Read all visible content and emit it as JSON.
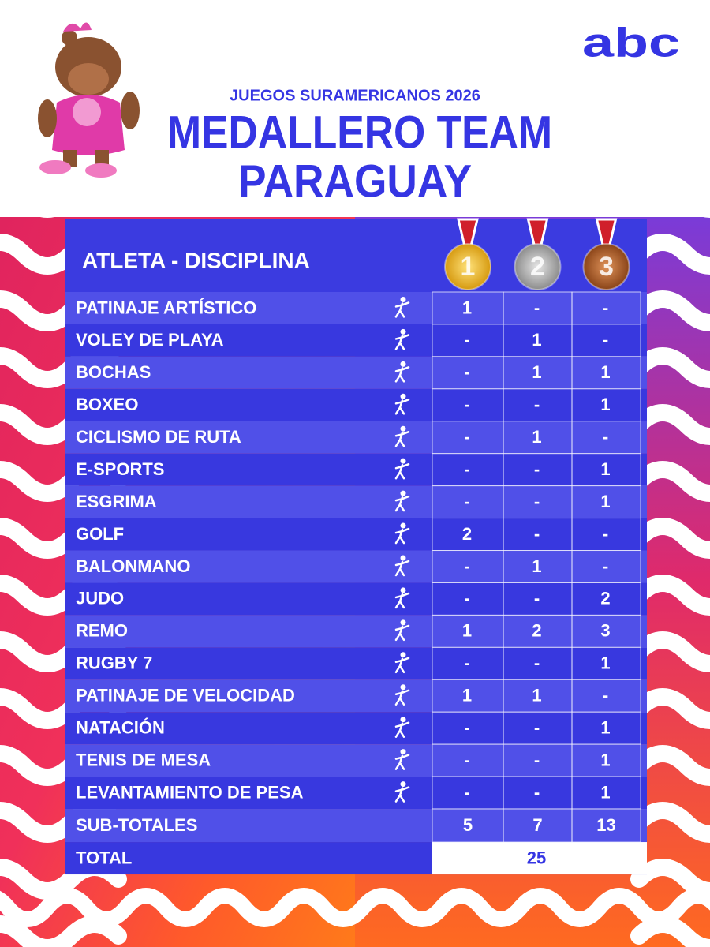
{
  "header": {
    "subtitle": "JUEGOS SURAMERICANOS 2026",
    "title_lines": [
      "MEDALLERO TEAM",
      "PARAGUAY"
    ],
    "logo": "abc"
  },
  "table": {
    "heading": "ATLETA - DISCIPLINA",
    "medals": [
      "1",
      "2",
      "3"
    ],
    "rows": [
      [
        "PATINAJE ARTÍSTICO",
        "1",
        "-",
        "-"
      ],
      [
        "VOLEY DE PLAYA",
        "-",
        "1",
        "-"
      ],
      [
        "BOCHAS",
        "-",
        "1",
        "1"
      ],
      [
        "BOXEO",
        "-",
        "-",
        "1"
      ],
      [
        "CICLISMO DE RUTA",
        "-",
        "1",
        "-"
      ],
      [
        "E-SPORTS",
        "-",
        "-",
        "1"
      ],
      [
        "ESGRIMA",
        "-",
        "-",
        "1"
      ],
      [
        "GOLF",
        "2",
        "-",
        "-"
      ],
      [
        "BALONMANO",
        "-",
        "1",
        "-"
      ],
      [
        "JUDO",
        "-",
        "-",
        "2"
      ],
      [
        "REMO",
        "1",
        "2",
        "3"
      ],
      [
        "RUGBY 7",
        "-",
        "-",
        "1"
      ],
      [
        "PATINAJE DE VELOCIDAD",
        "1",
        "1",
        "-"
      ],
      [
        "NATACIÓN",
        "-",
        "-",
        "1"
      ],
      [
        "TENIS DE MESA",
        "-",
        "-",
        "1"
      ],
      [
        "LEVANTAMIENTO DE PESA",
        "-",
        "-",
        "1"
      ]
    ],
    "subtotal": {
      "label": "SUB-TOTALES",
      "values": [
        5,
        7,
        13
      ]
    },
    "total": {
      "label": "TOTAL",
      "value": 25
    }
  }
}
